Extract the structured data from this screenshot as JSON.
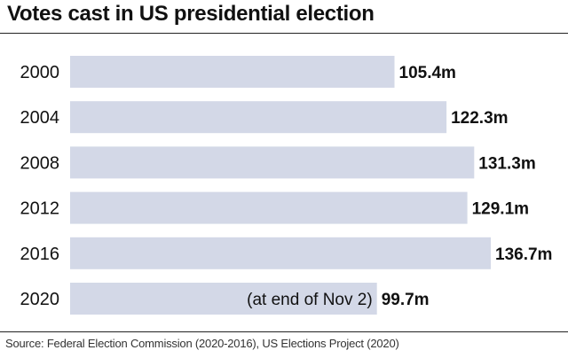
{
  "title": "Votes cast in US presidential election",
  "source": "Source: Federal Election Commission (2020-2016), US Elections Project (2020)",
  "colors": {
    "bar": "#d3d8e7",
    "text": "#111111"
  },
  "chart_data": {
    "type": "bar",
    "orientation": "horizontal",
    "title": "Votes cast in US presidential election",
    "categories": [
      "2000",
      "2004",
      "2008",
      "2012",
      "2016",
      "2020"
    ],
    "values": [
      105.4,
      122.3,
      131.3,
      129.1,
      136.7,
      99.7
    ],
    "value_labels": [
      "105.4m",
      "122.3m",
      "131.3m",
      "129.1m",
      "136.7m",
      "99.7m"
    ],
    "annotations": [
      {
        "category": "2020",
        "text": "(at end of Nov 2)"
      }
    ],
    "unit": "m",
    "xlim": [
      0,
      136.7
    ],
    "grid": false,
    "legend": "none"
  }
}
